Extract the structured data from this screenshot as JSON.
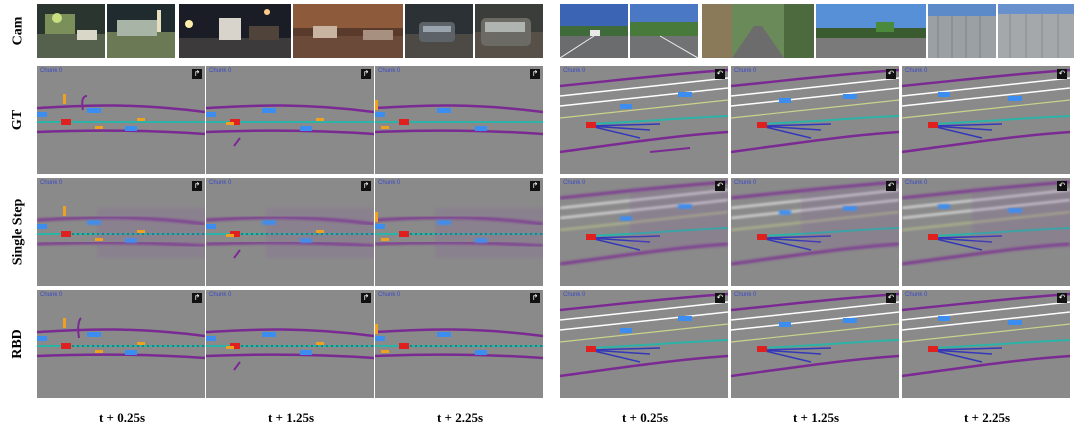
{
  "rows": [
    "Cam",
    "GT",
    "Single Step",
    "RBD"
  ],
  "panel_label": "Chunk 0",
  "scenarios": [
    {
      "name": "night-intersection",
      "corner_icon": "turn-right-icon",
      "corner_glyph": "↱"
    },
    {
      "name": "highway",
      "corner_icon": "u-turn-icon",
      "corner_glyph": "↶"
    }
  ],
  "time_labels": [
    "t + 0.25s",
    "t + 1.25s",
    "t + 2.25s",
    "t + 0.25s",
    "t + 1.25s",
    "t + 2.25s"
  ],
  "colors": {
    "background": "#8a8a8a",
    "boundary": "#7a2a92",
    "lane_center": "#2bb3a8",
    "ego_vehicle": "#e0201e",
    "other_vehicle": "#3c8df0",
    "pedestrian": "#f0a020",
    "lane_divider": "#ffffff",
    "route": "#3438b8"
  }
}
